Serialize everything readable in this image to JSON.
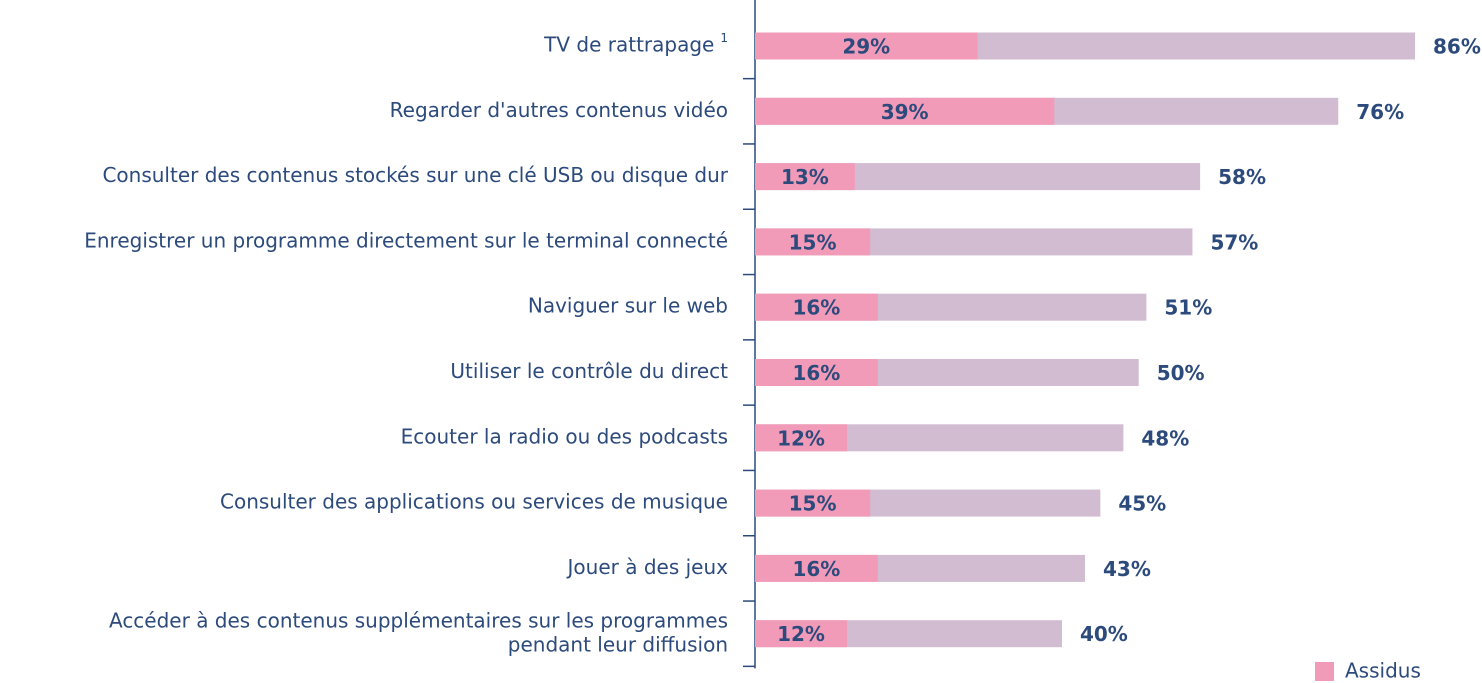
{
  "chart_data": {
    "type": "bar",
    "orientation": "horizontal",
    "categories": [
      "TV de rattrapage",
      "Regarder d'autres contenus vidéo",
      "Consulter des contenus stockés sur une clé USB ou disque dur",
      "Enregistrer un programme directement sur le terminal connecté",
      "Naviguer sur le web",
      "Utiliser le contrôle du direct",
      "Ecouter la radio ou des podcasts",
      "Consulter des applications ou services de musique",
      "Jouer à des jeux",
      "Accéder à des contenus supplémentaires sur les programmes\npendant leur diffusion"
    ],
    "category_superscripts": [
      "1",
      null,
      null,
      null,
      null,
      null,
      null,
      null,
      null,
      null
    ],
    "series": [
      {
        "color": "#d2bcd1",
        "values": [
          86,
          76,
          58,
          57,
          51,
          50,
          48,
          45,
          43,
          40
        ],
        "value_labels": [
          "86%",
          "76%",
          "58%",
          "57%",
          "51%",
          "50%",
          "48%",
          "45%",
          "43%",
          "40%"
        ]
      },
      {
        "name": "Assidus",
        "color": "#f29bb9",
        "values": [
          29,
          39,
          13,
          15,
          16,
          16,
          12,
          15,
          16,
          12
        ],
        "value_labels": [
          "29%",
          "39%",
          "13%",
          "15%",
          "16%",
          "16%",
          "12%",
          "15%",
          "16%",
          "12%"
        ]
      }
    ],
    "legend": "bottom-right"
  }
}
